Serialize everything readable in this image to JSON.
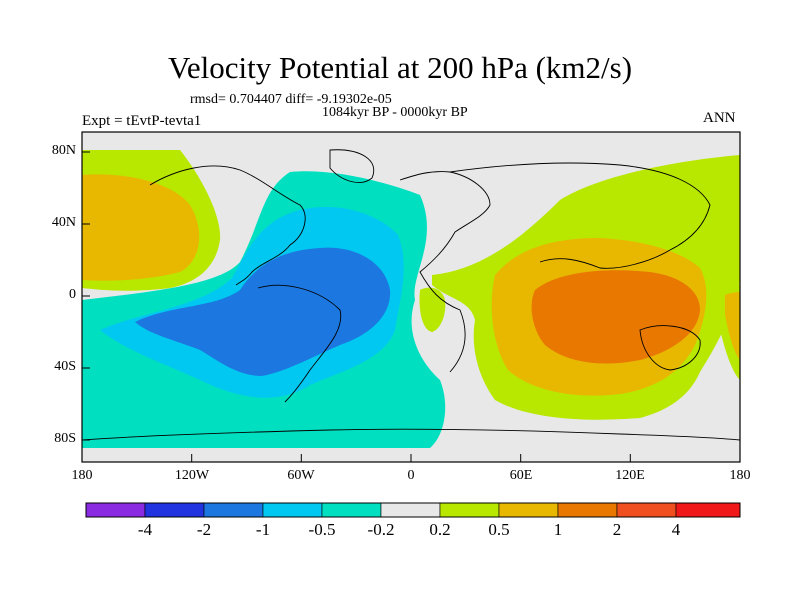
{
  "title": "Velocity Potential at 200 hPa (km2/s)",
  "stats_line": "rmsd= 0.704407 diff= -9.19302e-05",
  "period": "1084kyr BP - 0000kyr BP",
  "experiment": "Expt = tEvtP-tevta1",
  "season": "ANN",
  "y_axis_labels": [
    "80N",
    "40N",
    "0",
    "40S",
    "80S"
  ],
  "x_axis_labels": [
    "180",
    "120W",
    "60W",
    "0",
    "60E",
    "120E",
    "180"
  ],
  "colorbar": {
    "labels": [
      "-4",
      "-2",
      "-1",
      "-0.5",
      "-0.2",
      "0.2",
      "0.5",
      "1",
      "2",
      "4"
    ],
    "colors": [
      "#8a2be2",
      "#2233e0",
      "#1c78e0",
      "#00c8f0",
      "#00e0c0",
      "#e8e8e8",
      "#b8e800",
      "#e8b800",
      "#e87800",
      "#f05020",
      "#f01818"
    ]
  },
  "fill_colors": {
    "neutral": "#e8e8e8",
    "cyan": "#00e0c0",
    "lightblue": "#00c8f0",
    "blue": "#1c78e0",
    "yellowgreen": "#b8e800",
    "yellow": "#e8b800",
    "orange": "#e87800"
  }
}
